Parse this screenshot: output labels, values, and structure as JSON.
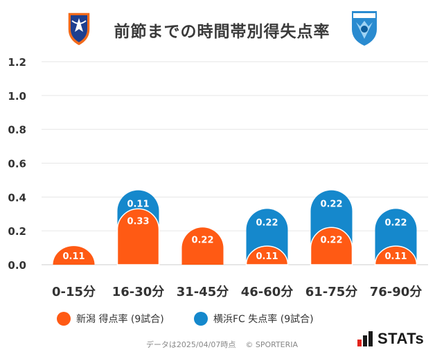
{
  "header": {
    "title": "前節までの時間帯別得失点率"
  },
  "chart_data": {
    "type": "bar",
    "categories": [
      "0-15分",
      "16-30分",
      "31-45分",
      "46-60分",
      "61-75分",
      "76-90分"
    ],
    "series": [
      {
        "name": "新潟 得点率 (9試合)",
        "color": "#ff5a14",
        "values": [
          0.11,
          0.33,
          0.22,
          0.11,
          0.22,
          0.11
        ],
        "labels": [
          "0.11",
          "0.33",
          "0.22",
          "0.11",
          "0.22",
          "0.11"
        ]
      },
      {
        "name": "横浜FC 失点率 (9試合)",
        "color": "#1588cc",
        "values": [
          0,
          0.11,
          0,
          0.22,
          0.22,
          0.22
        ],
        "labels": [
          "",
          "0.11",
          "",
          "0.22",
          "0.22",
          "0.22"
        ]
      }
    ],
    "y_ticks": [
      "0.0",
      "0.2",
      "0.4",
      "0.6",
      "0.8",
      "1.0",
      "1.2"
    ],
    "ylim": [
      0,
      1.2
    ],
    "grid": true,
    "stacked": true,
    "legend_position": "bottom-left"
  },
  "footer": {
    "data_note": "データは2025/04/07時点",
    "copyright": "© SPORTERIA"
  },
  "logo": {
    "text": "STATs"
  }
}
